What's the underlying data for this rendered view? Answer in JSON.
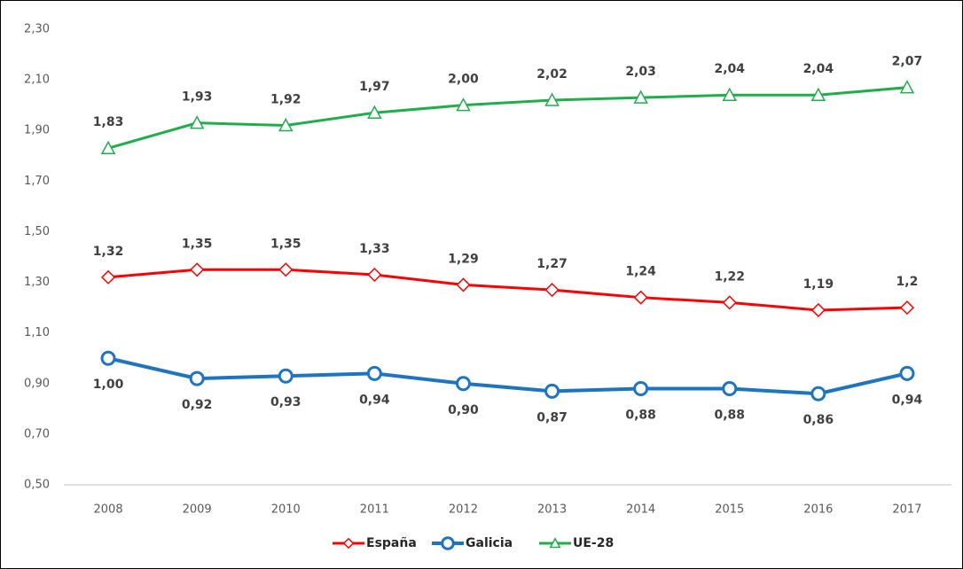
{
  "chart_data": {
    "type": "line",
    "categories": [
      "2008",
      "2009",
      "2010",
      "2011",
      "2012",
      "2013",
      "2014",
      "2015",
      "2016",
      "2017"
    ],
    "series": [
      {
        "name": "España",
        "color": "#ff0000",
        "marker": "diamond",
        "label_position": "above",
        "values": [
          1.32,
          1.35,
          1.35,
          1.33,
          1.29,
          1.27,
          1.24,
          1.22,
          1.19,
          1.2
        ],
        "value_labels": [
          "1,32",
          "1,35",
          "1,35",
          "1,33",
          "1,29",
          "1,27",
          "1,24",
          "1,22",
          "1,19",
          "1,2"
        ]
      },
      {
        "name": "Galicia",
        "color": "#1f74bf",
        "marker": "circle",
        "label_position": "below",
        "values": [
          1.0,
          0.92,
          0.93,
          0.94,
          0.9,
          0.87,
          0.88,
          0.88,
          0.86,
          0.94
        ],
        "value_labels": [
          "1,00",
          "0,92",
          "0,93",
          "0,94",
          "0,90",
          "0,87",
          "0,88",
          "0,88",
          "0,86",
          "0,94"
        ]
      },
      {
        "name": "UE-28",
        "color": "#1fae4b",
        "marker": "triangle",
        "label_position": "above",
        "values": [
          1.83,
          1.93,
          1.92,
          1.97,
          2.0,
          2.02,
          2.03,
          2.04,
          2.04,
          2.07
        ],
        "value_labels": [
          "1,83",
          "1,93",
          "1,92",
          "1,97",
          "2,00",
          "2,02",
          "2,03",
          "2,04",
          "2,04",
          "2,07"
        ]
      }
    ],
    "ylim": [
      0.5,
      2.3
    ],
    "yticks": [
      {
        "value": 0.5,
        "label": "0,50"
      },
      {
        "value": 0.7,
        "label": "0,70"
      },
      {
        "value": 0.9,
        "label": "0,90"
      },
      {
        "value": 1.1,
        "label": "1,10"
      },
      {
        "value": 1.3,
        "label": "1,30"
      },
      {
        "value": 1.5,
        "label": "1,50"
      },
      {
        "value": 1.7,
        "label": "1,70"
      },
      {
        "value": 1.9,
        "label": "1,90"
      },
      {
        "value": 2.1,
        "label": "2,10"
      },
      {
        "value": 2.3,
        "label": "2,30"
      }
    ],
    "grid": false,
    "legend": "bottom"
  }
}
